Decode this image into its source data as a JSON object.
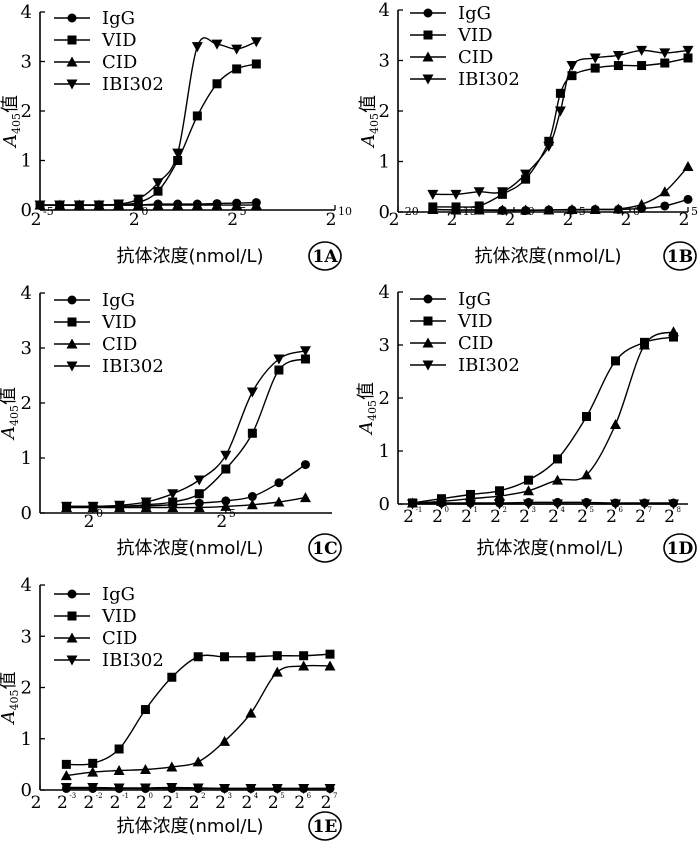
{
  "x_axis_label": "抗体浓度(nmol/L)",
  "y_axis_label": {
    "main": "A",
    "sub": "405",
    "suffix": "值"
  },
  "chart_data": [
    {
      "type": "line",
      "panel": "1A",
      "y_ticks": [
        "0",
        "1",
        "2",
        "3",
        "4"
      ],
      "ylim": [
        0,
        4
      ],
      "x_ticks": [
        {
          "base": "2",
          "exp": "-5"
        },
        {
          "base": "2",
          "exp": "0"
        },
        {
          "base": "2",
          "exp": "5"
        },
        {
          "base": "2",
          "exp": "10"
        }
      ],
      "xlim": [
        -5,
        10
      ],
      "x_scale": "log2",
      "legend": [
        "IgG",
        "VID",
        "CID",
        "IBI302"
      ],
      "legend_position": "top-left",
      "series": [
        {
          "name": "IgG",
          "marker": "circle",
          "x": [
            -5,
            -4,
            -3,
            -2,
            -1,
            0,
            1,
            2,
            3,
            4,
            5,
            6
          ],
          "y": [
            0.1,
            0.1,
            0.1,
            0.1,
            0.1,
            0.1,
            0.12,
            0.12,
            0.12,
            0.13,
            0.14,
            0.15
          ]
        },
        {
          "name": "VID",
          "marker": "square",
          "x": [
            -5,
            -4,
            -3,
            -2,
            -1,
            0,
            1,
            2,
            3,
            4,
            5,
            6
          ],
          "y": [
            0.1,
            0.1,
            0.1,
            0.1,
            0.11,
            0.15,
            0.38,
            1.0,
            1.9,
            2.55,
            2.85,
            2.95
          ]
        },
        {
          "name": "CID",
          "marker": "triangle",
          "x": [
            -5,
            -4,
            -3,
            -2,
            -1,
            0,
            1,
            2,
            3,
            4,
            5,
            6
          ],
          "y": [
            0.1,
            0.1,
            0.1,
            0.1,
            0.1,
            0.1,
            0.1,
            0.1,
            0.1,
            0.1,
            0.1,
            0.1
          ]
        },
        {
          "name": "IBI302",
          "marker": "triangle-down",
          "x": [
            -5,
            -4,
            -3,
            -2,
            -1,
            0,
            1,
            2,
            3,
            4,
            5,
            6
          ],
          "y": [
            0.1,
            0.1,
            0.1,
            0.1,
            0.12,
            0.22,
            0.55,
            1.15,
            3.3,
            3.35,
            3.25,
            3.4
          ]
        }
      ]
    },
    {
      "type": "line",
      "panel": "1B",
      "y_ticks": [
        "0",
        "1",
        "2",
        "3",
        "4"
      ],
      "ylim": [
        0,
        4
      ],
      "x_ticks": [
        {
          "base": "2",
          "exp": "-20"
        },
        {
          "base": "2",
          "exp": "-15"
        },
        {
          "base": "2",
          "exp": "-10"
        },
        {
          "base": "2",
          "exp": "-5"
        },
        {
          "base": "2",
          "exp": "0"
        },
        {
          "base": "2",
          "exp": "5"
        }
      ],
      "xlim": [
        -20,
        5
      ],
      "x_scale": "log2",
      "legend": [
        "IgG",
        "VID",
        "CID",
        "IBI302"
      ],
      "legend_position": "top-left",
      "series": [
        {
          "name": "IgG",
          "marker": "circle",
          "x": [
            -17,
            -15,
            -13,
            -11,
            -9,
            -7,
            -5,
            -3,
            -1,
            1,
            3,
            5
          ],
          "y": [
            0.05,
            0.04,
            0.04,
            0.03,
            0.03,
            0.04,
            0.04,
            0.05,
            0.05,
            0.07,
            0.12,
            0.25
          ]
        },
        {
          "name": "VID",
          "marker": "square",
          "x": [
            -17,
            -15,
            -13,
            -11,
            -9,
            -7,
            -6,
            -5,
            -3,
            -1,
            1,
            3,
            5
          ],
          "y": [
            0.1,
            0.1,
            0.12,
            0.35,
            0.65,
            1.4,
            2.35,
            2.7,
            2.85,
            2.9,
            2.9,
            2.95,
            3.05
          ]
        },
        {
          "name": "CID",
          "marker": "triangle",
          "x": [
            -17,
            -15,
            -13,
            -11,
            -9,
            -7,
            -5,
            -3,
            -1,
            1,
            3,
            5
          ],
          "y": [
            0.05,
            0.04,
            0.04,
            0.04,
            0.04,
            0.04,
            0.05,
            0.05,
            0.06,
            0.15,
            0.4,
            0.9
          ]
        },
        {
          "name": "IBI302",
          "marker": "triangle-down",
          "x": [
            -17,
            -15,
            -13,
            -11,
            -9,
            -7,
            -6,
            -5,
            -3,
            -1,
            1,
            3,
            5
          ],
          "y": [
            0.35,
            0.35,
            0.4,
            0.4,
            0.75,
            1.3,
            2.0,
            2.9,
            3.05,
            3.1,
            3.2,
            3.15,
            3.2
          ]
        }
      ]
    },
    {
      "type": "line",
      "panel": "1C",
      "y_ticks": [
        "0",
        "1",
        "2",
        "3",
        "4"
      ],
      "ylim": [
        0,
        4
      ],
      "x_ticks": [
        {
          "base": "2",
          "exp": "0"
        },
        {
          "base": "2",
          "exp": "5"
        }
      ],
      "xlim": [
        -2,
        9
      ],
      "x_scale": "log2",
      "legend": [
        "IgG",
        "VID",
        "CID",
        "IBI302"
      ],
      "legend_position": "top-left",
      "series": [
        {
          "name": "IgG",
          "marker": "circle",
          "x": [
            -1,
            0,
            1,
            2,
            3,
            4,
            5,
            6,
            7,
            8
          ],
          "y": [
            0.12,
            0.12,
            0.12,
            0.13,
            0.15,
            0.18,
            0.22,
            0.3,
            0.55,
            0.88
          ]
        },
        {
          "name": "VID",
          "marker": "square",
          "x": [
            -1,
            0,
            1,
            2,
            3,
            4,
            5,
            6,
            7,
            8
          ],
          "y": [
            0.12,
            0.12,
            0.12,
            0.15,
            0.2,
            0.35,
            0.8,
            1.45,
            2.6,
            2.8
          ]
        },
        {
          "name": "CID",
          "marker": "triangle",
          "x": [
            -1,
            0,
            1,
            2,
            3,
            4,
            5,
            6,
            7,
            8
          ],
          "y": [
            0.1,
            0.1,
            0.1,
            0.1,
            0.1,
            0.1,
            0.12,
            0.15,
            0.2,
            0.28
          ]
        },
        {
          "name": "IBI302",
          "marker": "triangle-down",
          "x": [
            -1,
            0,
            1,
            2,
            3,
            4,
            5,
            6,
            7,
            8
          ],
          "y": [
            0.12,
            0.12,
            0.14,
            0.2,
            0.35,
            0.6,
            1.05,
            2.2,
            2.8,
            2.95
          ]
        }
      ]
    },
    {
      "type": "line",
      "panel": "1D",
      "y_ticks": [
        "0",
        "1",
        "2",
        "3",
        "4"
      ],
      "ylim": [
        0,
        4
      ],
      "x_ticks": [
        {
          "base": "2",
          "exp": "-1"
        },
        {
          "base": "2",
          "exp": "0"
        },
        {
          "base": "2",
          "exp": "1"
        },
        {
          "base": "2",
          "exp": "2"
        },
        {
          "base": "2",
          "exp": "3"
        },
        {
          "base": "2",
          "exp": "4"
        },
        {
          "base": "2",
          "exp": "5"
        },
        {
          "base": "2",
          "exp": "6"
        },
        {
          "base": "2",
          "exp": "7"
        },
        {
          "base": "2",
          "exp": "8"
        }
      ],
      "xlim": [
        -1.5,
        8.5
      ],
      "x_scale": "log2",
      "legend": [
        "IgG",
        "VID",
        "CID",
        "IBI302"
      ],
      "legend_position": "top-left",
      "series": [
        {
          "name": "IgG",
          "marker": "circle",
          "x": [
            -1,
            0,
            1,
            2,
            3,
            4,
            5,
            6,
            7,
            8
          ],
          "y": [
            0.02,
            0.02,
            0.02,
            0.02,
            0.03,
            0.03,
            0.03,
            0.02,
            0.02,
            0.02
          ]
        },
        {
          "name": "VID",
          "marker": "square",
          "x": [
            -1,
            0,
            1,
            2,
            3,
            4,
            5,
            6,
            7,
            8
          ],
          "y": [
            0.02,
            0.1,
            0.18,
            0.25,
            0.45,
            0.85,
            1.65,
            2.7,
            3.05,
            3.15
          ]
        },
        {
          "name": "CID",
          "marker": "triangle",
          "x": [
            -1,
            0,
            1,
            2,
            3,
            4,
            5,
            6,
            7,
            8
          ],
          "y": [
            0.02,
            0.05,
            0.1,
            0.15,
            0.25,
            0.45,
            0.55,
            1.5,
            3.0,
            3.25
          ]
        },
        {
          "name": "IBI302",
          "marker": "triangle-down",
          "x": [
            -1,
            0,
            1,
            2,
            3,
            4,
            5,
            6,
            7,
            8
          ],
          "y": [
            0.0,
            0.0,
            0.0,
            0.0,
            0.0,
            0.0,
            0.0,
            0.0,
            0.0,
            0.0
          ]
        }
      ]
    },
    {
      "type": "line",
      "panel": "1E",
      "y_ticks": [
        "0",
        "1",
        "2",
        "3",
        "4"
      ],
      "ylim": [
        0,
        4
      ],
      "x_ticks": [
        {
          "base": "2",
          "exp": ""
        },
        {
          "base": "2",
          "exp": "-3"
        },
        {
          "base": "2",
          "exp": "-2"
        },
        {
          "base": "2",
          "exp": "-1"
        },
        {
          "base": "2",
          "exp": "0"
        },
        {
          "base": "2",
          "exp": "1"
        },
        {
          "base": "2",
          "exp": "2"
        },
        {
          "base": "2",
          "exp": "3"
        },
        {
          "base": "2",
          "exp": "4"
        },
        {
          "base": "2",
          "exp": "5"
        },
        {
          "base": "2",
          "exp": "6"
        },
        {
          "base": "2",
          "exp": "7"
        }
      ],
      "xlim": [
        -4,
        7
      ],
      "x_scale": "log2",
      "legend": [
        "IgG",
        "VID",
        "CID",
        "IBI302"
      ],
      "legend_position": "top-left",
      "series": [
        {
          "name": "IgG",
          "marker": "circle",
          "x": [
            -3,
            -2,
            -1,
            0,
            1,
            2,
            3,
            4,
            5,
            6,
            7
          ],
          "y": [
            0.03,
            0.03,
            0.03,
            0.03,
            0.03,
            0.03,
            0.03,
            0.03,
            0.03,
            0.03,
            0.03
          ]
        },
        {
          "name": "VID",
          "marker": "square",
          "x": [
            -3,
            -2,
            -1,
            0,
            1,
            2,
            3,
            4,
            5,
            6,
            7
          ],
          "y": [
            0.5,
            0.52,
            0.8,
            1.57,
            2.2,
            2.6,
            2.6,
            2.6,
            2.62,
            2.62,
            2.65
          ]
        },
        {
          "name": "CID",
          "marker": "triangle",
          "x": [
            -3,
            -2,
            -1,
            0,
            1,
            2,
            3,
            4,
            5,
            6,
            7
          ],
          "y": [
            0.28,
            0.35,
            0.38,
            0.4,
            0.45,
            0.55,
            0.95,
            1.5,
            2.3,
            2.42,
            2.42
          ]
        },
        {
          "name": "IBI302",
          "marker": "triangle-down",
          "x": [
            -3,
            -2,
            -1,
            0,
            1,
            2,
            3,
            4,
            5,
            6,
            7
          ],
          "y": [
            0.05,
            0.05,
            0.04,
            0.04,
            0.05,
            0.04,
            0.03,
            0.03,
            0.03,
            0.03,
            0.03
          ]
        }
      ]
    }
  ]
}
